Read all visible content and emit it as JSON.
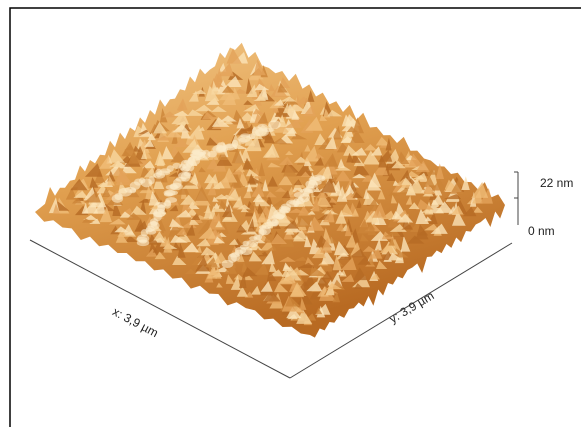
{
  "scale": {
    "top": "22 nm",
    "bottom": "0 nm"
  },
  "axes": {
    "x": "x: 3,9 µm",
    "y": "y: 3,9 µm"
  }
}
